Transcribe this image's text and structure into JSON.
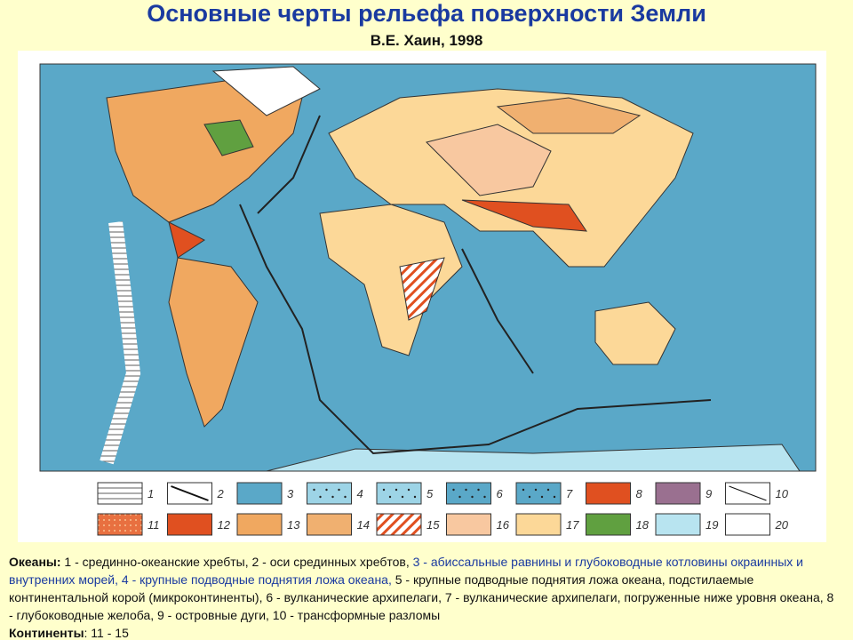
{
  "header": {
    "title": "Основные черты рельефа поверхности Земли",
    "subtitle": "В.Е. Хаин, 1998"
  },
  "legend": {
    "items": [
      "1",
      "2",
      "3",
      "4",
      "5",
      "6",
      "7",
      "8",
      "9",
      "10",
      "11",
      "12",
      "13",
      "14",
      "15",
      "16",
      "17",
      "18",
      "19",
      "20"
    ]
  },
  "caption": {
    "oceans_label": "Океаны:",
    "oceans_part1": " 1 - срединно-океанские хребты, 2 - оси срединных хребтов, ",
    "oceans_part2": "3 - абиссальные равнины и глубоководные котловины окраинных и внутренних морей, 4 - крупные подводные поднятия ложа океана,",
    "oceans_part3": " 5 - крупные подводные поднятия ложа океана, подстилаемые континентальной корой (микроконтиненты), 6 - вулканические архипелаги, 7 - вулканические архипелаги, погруженные ниже уровня океана, 8 - глубоководные желоба, 9 - островные дуги, 10 - трансформные разломы",
    "continents_label": "Континенты",
    "continents_text": ": 11 - 15"
  }
}
